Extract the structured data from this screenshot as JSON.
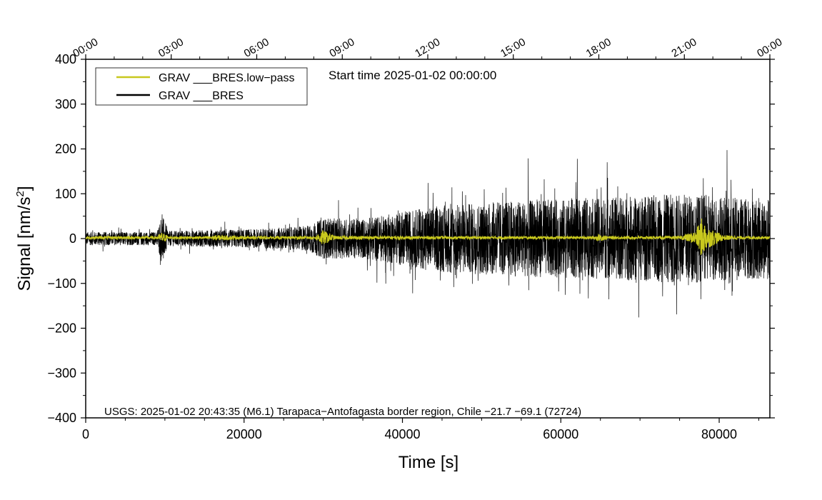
{
  "chart_data": {
    "type": "line",
    "xlabel": "Time [s]",
    "ylabel_main": "Signal [nm/s",
    "ylabel_sup": "2",
    "ylabel_close": "]",
    "xlim": [
      0,
      86400
    ],
    "ylim": [
      -400,
      400
    ],
    "x_ticks": [
      0,
      20000,
      40000,
      60000,
      80000
    ],
    "x_tick_labels": [
      "0",
      "20000",
      "40000",
      "60000",
      "80000"
    ],
    "y_ticks": [
      400,
      300,
      200,
      100,
      0,
      -100,
      -200,
      -300,
      -400
    ],
    "y_tick_labels": [
      "400",
      "300",
      "200",
      "100",
      "0",
      "−100",
      "−200",
      "−300",
      "−400"
    ],
    "top_ticks_seconds": [
      0,
      10800,
      21600,
      32400,
      43200,
      54000,
      64800,
      75600,
      86400
    ],
    "top_tick_labels": [
      "00:00",
      "03:00",
      "06:00",
      "09:00",
      "12:00",
      "15:00",
      "18:00",
      "21:00",
      "00:00"
    ],
    "start_time_text": "Start time 2025-01-02 00:00:00",
    "annotation": "USGS: 2025-01-02 20:43:35 (M6.1) Tarapaca−Antofagasta border region, Chile −21.7 −69.1 (72724)",
    "legend_position": "top-left",
    "series": [
      {
        "name": "GRAV ___BRES.low−pass",
        "color": "#c8c81e",
        "envelope": {
          "x": [
            0,
            9000,
            9600,
            10500,
            15500,
            16500,
            20000,
            29000,
            29800,
            31500,
            45000,
            64000,
            65000,
            66000,
            75000,
            77000,
            77800,
            78500,
            80500,
            83000,
            86400
          ],
          "amplitude": [
            3,
            3,
            12,
            3,
            3,
            6,
            3,
            3,
            18,
            4,
            3,
            3,
            8,
            3,
            3,
            15,
            45,
            25,
            6,
            3,
            3
          ]
        },
        "baseline": 2
      },
      {
        "name": "GRAV ___BRES",
        "color": "#000000",
        "envelope": {
          "x": [
            0,
            9000,
            9600,
            10500,
            20000,
            28000,
            30000,
            35000,
            45000,
            55000,
            65000,
            75000,
            80000,
            86400
          ],
          "amplitude": [
            15,
            15,
            55,
            17,
            20,
            28,
            45,
            45,
            75,
            85,
            90,
            100,
            95,
            90
          ]
        },
        "baseline": 0
      }
    ]
  }
}
